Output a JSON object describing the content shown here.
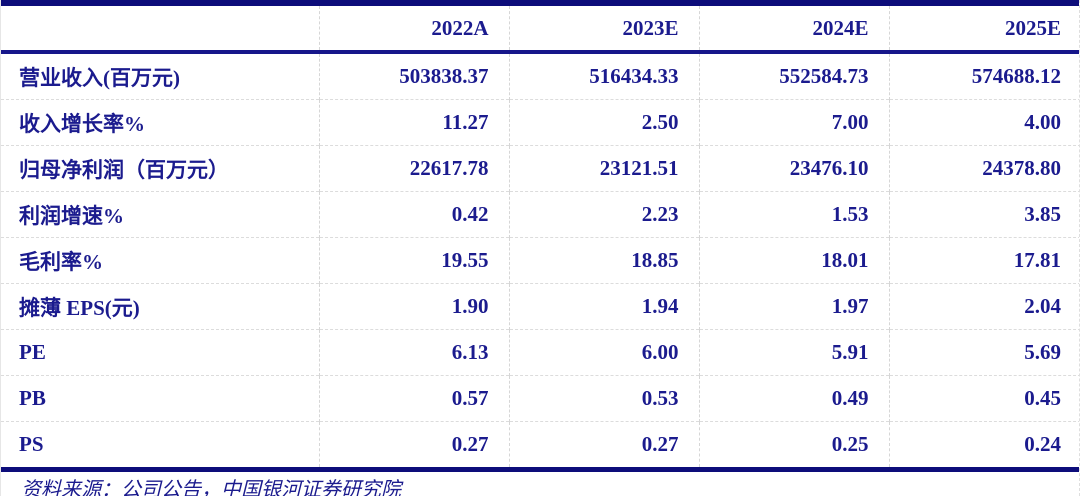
{
  "table": {
    "corner": "",
    "columns": [
      "2022A",
      "2023E",
      "2024E",
      "2025E"
    ],
    "rows": [
      {
        "label": "营业收入(百万元)",
        "values": [
          "503838.37",
          "516434.33",
          "552584.73",
          "574688.12"
        ]
      },
      {
        "label": "收入增长率%",
        "values": [
          "11.27",
          "2.50",
          "7.00",
          "4.00"
        ]
      },
      {
        "label": "归母净利润（百万元）",
        "values": [
          "22617.78",
          "23121.51",
          "23476.10",
          "24378.80"
        ]
      },
      {
        "label": "利润增速%",
        "values": [
          "0.42",
          "2.23",
          "1.53",
          "3.85"
        ]
      },
      {
        "label": "毛利率%",
        "values": [
          "19.55",
          "18.85",
          "18.01",
          "17.81"
        ]
      },
      {
        "label": "摊薄 EPS(元)",
        "values": [
          "1.90",
          "1.94",
          "1.97",
          "2.04"
        ]
      },
      {
        "label": "PE",
        "values": [
          "6.13",
          "6.00",
          "5.91",
          "5.69"
        ]
      },
      {
        "label": "PB",
        "values": [
          "0.57",
          "0.53",
          "0.49",
          "0.45"
        ]
      },
      {
        "label": "PS",
        "values": [
          "0.27",
          "0.27",
          "0.25",
          "0.24"
        ]
      }
    ],
    "source_note": "资料来源：公司公告，中国银河证券研究院"
  },
  "colors": {
    "text_navy": "#1b1b8e",
    "border_navy": "#0d0d7a",
    "header_rule_navy": "#16168a",
    "grid_dashed_gray": "#d6d6d6"
  },
  "chart_data": {
    "type": "table",
    "columns": [
      "",
      "2022A",
      "2023E",
      "2024E",
      "2025E"
    ],
    "rows": [
      [
        "营业收入(百万元)",
        503838.37,
        516434.33,
        552584.73,
        574688.12
      ],
      [
        "收入增长率%",
        11.27,
        2.5,
        7.0,
        4.0
      ],
      [
        "归母净利润（百万元）",
        22617.78,
        23121.51,
        23476.1,
        24378.8
      ],
      [
        "利润增速%",
        0.42,
        2.23,
        1.53,
        3.85
      ],
      [
        "毛利率%",
        19.55,
        18.85,
        18.01,
        17.81
      ],
      [
        "摊薄 EPS(元)",
        1.9,
        1.94,
        1.97,
        2.04
      ],
      [
        "PE",
        6.13,
        6.0,
        5.91,
        5.69
      ],
      [
        "PB",
        0.57,
        0.53,
        0.49,
        0.45
      ],
      [
        "PS",
        0.27,
        0.27,
        0.25,
        0.24
      ]
    ],
    "title": "",
    "source": "资料来源：公司公告，中国银河证券研究院"
  }
}
